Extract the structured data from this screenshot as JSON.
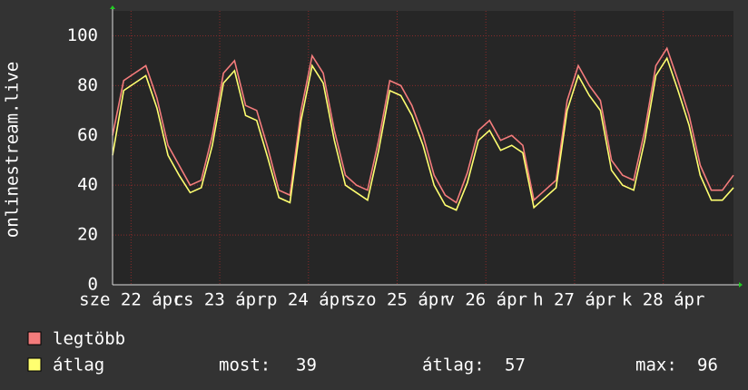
{
  "chart_data": {
    "type": "line",
    "ylabel": "onlinestream.live",
    "x": [
      0,
      3,
      6,
      9,
      12,
      15,
      18,
      21,
      24,
      27,
      30,
      33,
      36,
      39,
      42,
      45,
      48,
      51,
      54,
      57,
      60,
      63,
      66,
      69,
      72,
      75,
      78,
      81,
      84,
      87,
      90,
      93,
      96,
      99,
      102,
      105,
      108,
      111,
      114,
      117,
      120,
      123,
      126,
      129,
      132,
      135,
      138,
      141,
      144,
      147,
      150,
      153,
      156,
      159,
      162,
      165,
      168
    ],
    "xlim": [
      0,
      168
    ],
    "xticks": [
      {
        "value": 5,
        "label": "sze 22 ápr"
      },
      {
        "value": 29,
        "label": "cs 23 ápr"
      },
      {
        "value": 53,
        "label": "p 24 ápr"
      },
      {
        "value": 77,
        "label": "szo 25 ápr"
      },
      {
        "value": 101,
        "label": "v 26 ápr"
      },
      {
        "value": 125,
        "label": "h 27 ápr"
      },
      {
        "value": 149,
        "label": "k 28 ápr"
      }
    ],
    "ylim": [
      0,
      110
    ],
    "yticks": [
      0,
      20,
      40,
      60,
      80,
      100
    ],
    "grid": true,
    "series": [
      {
        "name": "legtöbb",
        "color": "#f47c7c",
        "values": [
          60,
          82,
          85,
          88,
          75,
          56,
          48,
          40,
          42,
          60,
          85,
          90,
          72,
          70,
          55,
          38,
          36,
          70,
          92,
          85,
          62,
          44,
          40,
          38,
          58,
          82,
          80,
          72,
          60,
          44,
          36,
          33,
          45,
          62,
          66,
          58,
          60,
          56,
          34,
          38,
          42,
          74,
          88,
          80,
          74,
          50,
          44,
          42,
          62,
          88,
          95,
          82,
          68,
          48,
          38,
          38,
          44
        ]
      },
      {
        "name": "átlag",
        "color": "#ffff70",
        "values": [
          52,
          78,
          81,
          84,
          71,
          52,
          44,
          37,
          39,
          56,
          81,
          86,
          68,
          66,
          51,
          35,
          33,
          66,
          88,
          81,
          58,
          40,
          37,
          34,
          54,
          78,
          76,
          68,
          56,
          40,
          32,
          30,
          41,
          58,
          62,
          54,
          56,
          53,
          31,
          35,
          39,
          70,
          84,
          76,
          70,
          46,
          40,
          38,
          58,
          84,
          91,
          78,
          64,
          44,
          34,
          34,
          39
        ]
      }
    ],
    "stats": [
      {
        "label": "most:",
        "value": 39
      },
      {
        "label": "átlag:",
        "value": 57
      },
      {
        "label": "max:",
        "value": 96
      }
    ]
  }
}
